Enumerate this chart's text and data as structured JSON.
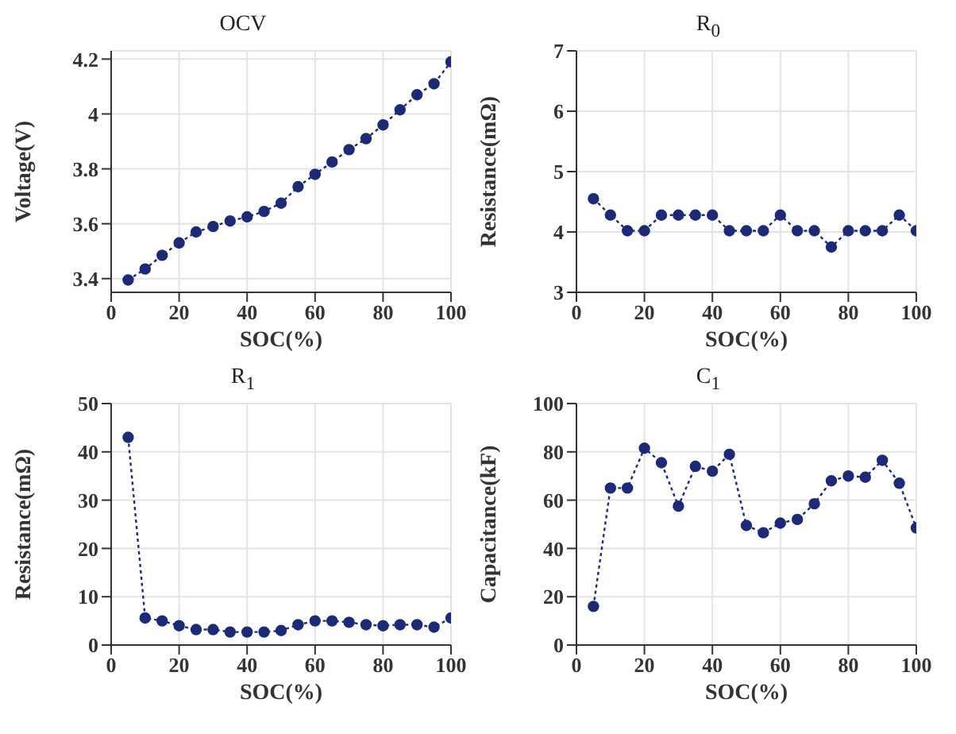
{
  "chart_data": [
    {
      "type": "line",
      "title": "OCV",
      "xlabel": "SOC(%)",
      "ylabel": "Voltage(V)",
      "x": [
        5,
        10,
        15,
        20,
        25,
        30,
        35,
        40,
        45,
        50,
        55,
        60,
        65,
        70,
        75,
        80,
        85,
        90,
        95,
        100
      ],
      "series": [
        {
          "color": "#1c2a78",
          "values": [
            3.395,
            3.435,
            3.485,
            3.53,
            3.57,
            3.59,
            3.61,
            3.625,
            3.645,
            3.675,
            3.735,
            3.78,
            3.825,
            3.87,
            3.91,
            3.96,
            4.015,
            4.07,
            4.11,
            4.19
          ]
        }
      ],
      "xlim": [
        0,
        100
      ],
      "xticks": [
        0,
        20,
        40,
        60,
        80,
        100
      ],
      "ylim": [
        3.35,
        4.23
      ],
      "yticks": [
        3.4,
        3.6,
        3.8,
        4,
        4.2
      ],
      "grid": true,
      "marker": "circle",
      "line_style": "dotted"
    },
    {
      "type": "line",
      "title": "R$_{0}$",
      "xlabel": "SOC(%)",
      "ylabel": "Resistance(mΩ)",
      "x": [
        5,
        10,
        15,
        20,
        25,
        30,
        35,
        40,
        45,
        50,
        55,
        60,
        65,
        70,
        75,
        80,
        85,
        90,
        95,
        100
      ],
      "series": [
        {
          "color": "#1c2a78",
          "values": [
            4.55,
            4.28,
            4.02,
            4.02,
            4.28,
            4.28,
            4.28,
            4.28,
            4.02,
            4.02,
            4.02,
            4.28,
            4.02,
            4.02,
            3.75,
            4.02,
            4.02,
            4.02,
            4.28,
            4.02
          ]
        }
      ],
      "xlim": [
        0,
        100
      ],
      "xticks": [
        0,
        20,
        40,
        60,
        80,
        100
      ],
      "ylim": [
        3,
        7
      ],
      "yticks": [
        3,
        4,
        5,
        6,
        7
      ],
      "grid": true,
      "marker": "circle",
      "line_style": "dotted"
    },
    {
      "type": "line",
      "title": "R$_{1}$",
      "xlabel": "SOC(%)",
      "ylabel": "Resistance(mΩ)",
      "x": [
        5,
        10,
        15,
        20,
        25,
        30,
        35,
        40,
        45,
        50,
        55,
        60,
        65,
        70,
        75,
        80,
        85,
        90,
        95,
        100
      ],
      "series": [
        {
          "color": "#1c2a78",
          "values": [
            43,
            5.6,
            5,
            4,
            3.2,
            3.2,
            2.7,
            2.7,
            2.7,
            3,
            4.2,
            5,
            5,
            4.7,
            4.2,
            4,
            4.2,
            4.2,
            3.7,
            5.6
          ]
        }
      ],
      "xlim": [
        0,
        100
      ],
      "xticks": [
        0,
        20,
        40,
        60,
        80,
        100
      ],
      "ylim": [
        0,
        50
      ],
      "yticks": [
        0,
        10,
        20,
        30,
        40,
        50
      ],
      "grid": true,
      "marker": "circle",
      "line_style": "dotted"
    },
    {
      "type": "line",
      "title": "C$_{1}$",
      "xlabel": "SOC(%)",
      "ylabel": "Capacitance(kF)",
      "x": [
        5,
        10,
        15,
        20,
        25,
        30,
        35,
        40,
        45,
        50,
        55,
        60,
        65,
        70,
        75,
        80,
        85,
        90,
        95,
        100
      ],
      "series": [
        {
          "color": "#1c2a78",
          "values": [
            16,
            65,
            65,
            81.5,
            75.5,
            57.5,
            74,
            72,
            79,
            49.5,
            46.5,
            50.5,
            52,
            58.5,
            68,
            70,
            69.5,
            76.5,
            67,
            48.5
          ]
        }
      ],
      "xlim": [
        0,
        100
      ],
      "xticks": [
        0,
        20,
        40,
        60,
        80,
        100
      ],
      "ylim": [
        0,
        100
      ],
      "yticks": [
        0,
        20,
        40,
        60,
        80,
        100
      ],
      "grid": true,
      "marker": "circle",
      "line_style": "dotted"
    }
  ]
}
